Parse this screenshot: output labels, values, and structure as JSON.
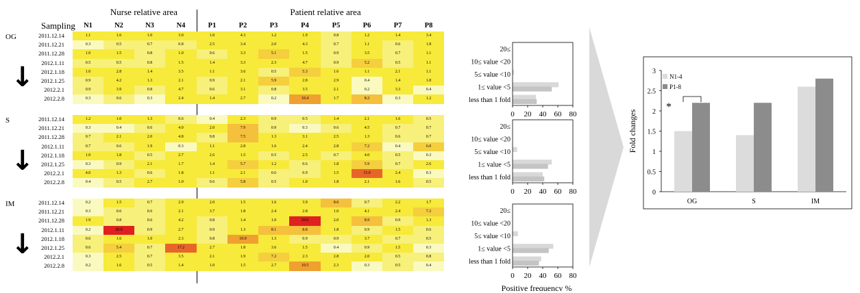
{
  "header": {
    "sampling_label": "Sampling",
    "nurse_area": "Nurse relative area",
    "patient_area": "Patient relative area",
    "columns": [
      "N1",
      "N2",
      "N3",
      "N4",
      "P1",
      "P2",
      "P3",
      "P4",
      "P5",
      "P6",
      "P7",
      "P8"
    ]
  },
  "groups": [
    {
      "name": "OG",
      "dates": [
        "2011.12.14",
        "2011.12.21",
        "2011.12.28",
        "2012.1.11",
        "2012.1.18",
        "2012.1.25",
        "2012.2.1",
        "2012.2.8"
      ],
      "rows": [
        [
          "1.1",
          "1.6",
          "1.0",
          "3.0",
          "1.0",
          "4.3",
          "1.2",
          "1.9",
          "0.8",
          "1.2",
          "1.4",
          "3.4"
        ],
        [
          "0.3",
          "0.5",
          "0.7",
          "0.8",
          "2.5",
          "3.4",
          "2.0",
          "4.3",
          "0.7",
          "1.1",
          "0.6",
          "1.8"
        ],
        [
          "1.0",
          "1.5",
          "0.8",
          "1.0",
          "0.6",
          "3.3",
          "5.1",
          "1.5",
          "0.9",
          "3.5",
          "0.7",
          "1.1"
        ],
        [
          "0.5",
          "0.5",
          "0.8",
          "1.5",
          "1.4",
          "3.3",
          "2.3",
          "4.7",
          "0.9",
          "5.2",
          "0.5",
          "1.1"
        ],
        [
          "1.0",
          "2.8",
          "1.4",
          "3.5",
          "1.1",
          "3.6",
          "0.5",
          "5.3",
          "1.6",
          "1.1",
          "2.1",
          "1.1"
        ],
        [
          "0.9",
          "4.2",
          "1.3",
          "2.1",
          "0.9",
          "2.1",
          "5.9",
          "2.8",
          "2.9",
          "0.4",
          "1.4",
          "1.8"
        ],
        [
          "0.9",
          "3.9",
          "0.8",
          "4.7",
          "0.6",
          "3.1",
          "0.8",
          "3.5",
          "2.1",
          "0.2",
          "3.3",
          "0.4"
        ],
        [
          "0.3",
          "0.6",
          "0.3",
          "2.4",
          "1.4",
          "2.7",
          "0.2",
          "10.4",
          "1.7",
          "8.2",
          "0.3",
          "1.2"
        ]
      ]
    },
    {
      "name": "S",
      "dates": [
        "2011.12.14",
        "2011.12.21",
        "2011.12.28",
        "2012.1.11",
        "2012.1.18",
        "2012.1.25",
        "2012.2.1",
        "2012.2.8"
      ],
      "rows": [
        [
          "1.2",
          "1.0",
          "1.3",
          "0.6",
          "0.4",
          "2.3",
          "0.9",
          "0.5",
          "1.4",
          "2.1",
          "1.6",
          "0.5"
        ],
        [
          "0.3",
          "0.4",
          "0.6",
          "4.0",
          "2.0",
          "7.9",
          "0.9",
          "0.3",
          "0.6",
          "4.5",
          "0.7",
          "0.7"
        ],
        [
          "0.7",
          "2.1",
          "2.0",
          "4.8",
          "0.8",
          "7.5",
          "1.3",
          "3.1",
          "2.5",
          "1.3",
          "0.6",
          "0.7"
        ],
        [
          "0.7",
          "0.6",
          "1.9",
          "0.3",
          "1.1",
          "2.8",
          "1.6",
          "2.4",
          "2.8",
          "7.2",
          "0.4",
          "6.0"
        ],
        [
          "1.0",
          "1.8",
          "0.5",
          "2.7",
          "2.6",
          "1.5",
          "0.5",
          "2.5",
          "0.7",
          "4.0",
          "0.5",
          "0.3"
        ],
        [
          "0.3",
          "0.9",
          "2.1",
          "1.7",
          "1.4",
          "5.7",
          "1.2",
          "0.6",
          "1.8",
          "5.9",
          "0.7",
          "2.6"
        ],
        [
          "4.0",
          "1.3",
          "0.6",
          "1.8",
          "1.1",
          "2.1",
          "0.6",
          "0.9",
          "1.5",
          "15.0",
          "2.4",
          "0.3"
        ],
        [
          "0.4",
          "0.5",
          "2.7",
          "1.0",
          "0.6",
          "5.8",
          "0.5",
          "1.0",
          "1.8",
          "2.1",
          "1.6",
          "0.5"
        ]
      ]
    },
    {
      "name": "IM",
      "dates": [
        "2011.12.14",
        "2011.12.21",
        "2011.12.28",
        "2012.1.11",
        "2012.1.18",
        "2012.1.25",
        "2012.2.1",
        "2012.2.8"
      ],
      "rows": [
        [
          "0.2",
          "1.5",
          "0.7",
          "2.9",
          "2.0",
          "1.5",
          "1.6",
          "3.9",
          "8.0",
          "0.7",
          "2.2",
          "1.7"
        ],
        [
          "0.3",
          "0.6",
          "0.6",
          "2.1",
          "3.7",
          "1.8",
          "2.4",
          "2.8",
          "1.0",
          "4.1",
          "2.4",
          "7.2"
        ],
        [
          "1.9",
          "0.8",
          "0.6",
          "4.2",
          "0.8",
          "1.4",
          "1.0",
          "20.0",
          "2.0",
          "8.9",
          "0.9",
          "1.3"
        ],
        [
          "0.2",
          "20.0",
          "0.9",
          "2.7",
          "0.9",
          "1.3",
          "8.1",
          "8.8",
          "1.8",
          "0.9",
          "1.5",
          "0.6"
        ],
        [
          "0.6",
          "1.6",
          "1.0",
          "2.3",
          "0.8",
          "10.0",
          "1.3",
          "0.9",
          "0.9",
          "3.7",
          "0.7",
          "0.5"
        ],
        [
          "0.6",
          "5.4",
          "0.7",
          "17.2",
          "2.7",
          "1.8",
          "3.6",
          "1.5",
          "0.4",
          "0.9",
          "1.5",
          "0.3"
        ],
        [
          "0.3",
          "2.5",
          "0.7",
          "3.5",
          "2.1",
          "1.9",
          "7.2",
          "2.3",
          "2.8",
          "2.0",
          "0.5",
          "0.8"
        ],
        [
          "0.2",
          "1.6",
          "0.5",
          "1.4",
          "1.0",
          "1.5",
          "2.7",
          "10.5",
          "2.3",
          "0.3",
          "0.5",
          "0.4"
        ]
      ]
    }
  ],
  "chart_data": [
    {
      "type": "bar",
      "orientation": "horizontal",
      "categories": [
        "20≤",
        "10≤ value <20",
        "5≤ value <10",
        "1≤ value <5",
        "less than 1 fold"
      ],
      "series": [
        {
          "values": [
            0,
            0,
            2,
            61,
            31
          ]
        },
        {
          "values": [
            0,
            0,
            0,
            52,
            32
          ]
        }
      ],
      "xlim": [
        0,
        80
      ],
      "xticks": [
        "0",
        "20",
        "40",
        "60",
        "80"
      ]
    },
    {
      "type": "bar",
      "orientation": "horizontal",
      "categories": [
        "20≤",
        "10≤ value <20",
        "5≤ value <10",
        "1≤ value <5",
        "less than 1 fold"
      ],
      "series": [
        {
          "values": [
            0,
            0,
            6,
            52,
            40
          ]
        },
        {
          "values": [
            0,
            0,
            0,
            47,
            42
          ]
        }
      ],
      "xlim": [
        0,
        80
      ],
      "xticks": [
        "0",
        "20",
        "40",
        "60",
        "80"
      ]
    },
    {
      "type": "bar",
      "orientation": "horizontal",
      "categories": [
        "20≤",
        "10≤ value <20",
        "5≤ value <10",
        "1≤ value <5",
        "less than 1 fold"
      ],
      "series": [
        {
          "values": [
            0,
            0,
            7,
            54,
            38
          ]
        },
        {
          "values": [
            0,
            0,
            0,
            48,
            35
          ]
        }
      ],
      "xlim": [
        0,
        80
      ],
      "xticks": [
        "0",
        "20",
        "40",
        "60",
        "80"
      ],
      "xlabel": "Positive frequency %"
    },
    {
      "type": "bar",
      "categories": [
        "OG",
        "S",
        "IM"
      ],
      "series": [
        {
          "name": "N1-4",
          "values": [
            1.5,
            1.4,
            2.6
          ],
          "color": "#dcdcdc"
        },
        {
          "name": "P1-8",
          "values": [
            2.2,
            2.2,
            2.8
          ],
          "color": "#8c8c8c"
        }
      ],
      "ylabel": "Fold changes",
      "ylim": [
        0,
        3
      ],
      "yticks": [
        "0",
        "0.5",
        "1",
        "1.5",
        "2",
        "2.5",
        "3"
      ],
      "annotation": "*",
      "legend": "top-left"
    }
  ]
}
